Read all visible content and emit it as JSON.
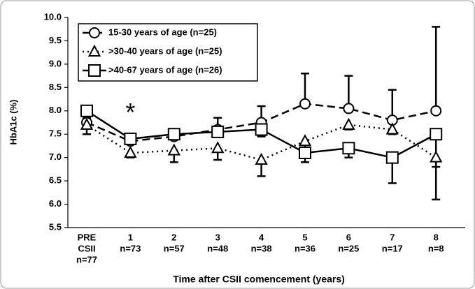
{
  "chart_data": {
    "type": "line",
    "x_label": "Time after CSII comencement (years)",
    "y_label": "HbA1c (%)",
    "categories": [
      [
        "PRE",
        "CSII",
        "n=77"
      ],
      [
        "1",
        "n=73"
      ],
      [
        "2",
        "n=57"
      ],
      [
        "3",
        "n=48"
      ],
      [
        "4",
        "n=38"
      ],
      [
        "5",
        "n=36"
      ],
      [
        "6",
        "n=25"
      ],
      [
        "7",
        "n=17"
      ],
      [
        "8",
        "n=8"
      ]
    ],
    "ylim": [
      5.5,
      10
    ],
    "yticks": [
      5.5,
      {
        "value": 6,
        "label": "6.0"
      },
      6.5,
      {
        "value": 7,
        "label": "7.0"
      },
      7.5,
      {
        "value": 8,
        "label": "8.0"
      },
      8.5,
      {
        "value": 9,
        "label": "9.0"
      },
      9.5,
      {
        "value": 10,
        "label": "10.0"
      }
    ],
    "annotations": [
      {
        "text": "*",
        "category": 1,
        "y": 8.05
      }
    ],
    "series": [
      {
        "name": "15-30 years of age (n=25)",
        "color": "#000000",
        "marker": "circle",
        "line_style": "dashed",
        "error_direction": "up",
        "values": [
          7.75,
          7.35,
          7.45,
          7.6,
          7.75,
          8.15,
          8.05,
          7.8,
          8.0
        ],
        "errors": [
          0.1,
          0.1,
          0.1,
          0.25,
          0.35,
          0.65,
          0.7,
          0.65,
          1.8
        ]
      },
      {
        "name": ">30-40 years of age (n=25)",
        "color": "#000000",
        "marker": "triangle",
        "line_style": "dotted",
        "error_direction": "down",
        "values": [
          7.7,
          7.1,
          7.15,
          7.2,
          6.95,
          7.35,
          7.7,
          7.6,
          7.0
        ],
        "errors": [
          0.2,
          0.1,
          0.25,
          0.25,
          0.35,
          0.15,
          0.1,
          0.1,
          0.2
        ]
      },
      {
        "name": ">40-67 years of age (n=26)",
        "color": "#000000",
        "marker": "square",
        "line_style": "solid",
        "error_direction": "down",
        "values": [
          8.0,
          7.4,
          7.5,
          7.55,
          7.6,
          7.1,
          7.2,
          7.0,
          7.5
        ],
        "errors": [
          0.1,
          0.1,
          0.1,
          0.1,
          0.15,
          0.2,
          0.2,
          0.55,
          1.4
        ]
      }
    ]
  }
}
